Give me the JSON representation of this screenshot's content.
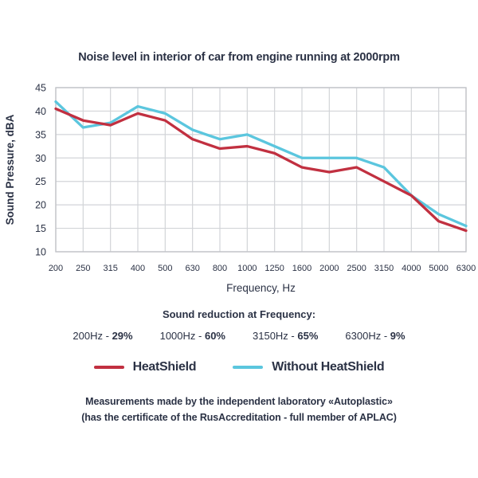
{
  "title": "Noise level in interior of car from engine running at 2000rpm",
  "chart_data": {
    "type": "line",
    "categories": [
      "200",
      "250",
      "315",
      "400",
      "500",
      "630",
      "800",
      "1000",
      "1250",
      "1600",
      "2000",
      "2500",
      "3150",
      "4000",
      "5000",
      "6300"
    ],
    "xlabel": "Frequency, Hz",
    "ylabel": "Sound Pressure, dBA",
    "ylim": [
      10,
      45
    ],
    "ytick_step": 5,
    "grid": true,
    "legend_position": "bottom",
    "series": [
      {
        "name": "HeatShield",
        "color": "#c13040",
        "values": [
          40.5,
          38,
          37,
          39.5,
          38,
          34,
          32,
          32.5,
          31,
          28,
          27,
          28,
          25,
          22,
          16.5,
          14.5
        ]
      },
      {
        "name": "Without HeatShield",
        "color": "#5bc6de",
        "values": [
          42,
          36.5,
          37.5,
          41,
          39.5,
          36,
          34,
          35,
          32.5,
          30,
          30,
          30,
          28,
          22,
          18,
          15.5
        ]
      }
    ]
  },
  "reduction": {
    "heading": "Sound reduction at Frequency:",
    "items": [
      {
        "freq": "200Hz -",
        "value": "29%"
      },
      {
        "freq": "1000Hz -",
        "value": "60%"
      },
      {
        "freq": "3150Hz -",
        "value": "65%"
      },
      {
        "freq": "6300Hz -",
        "value": "9%"
      }
    ]
  },
  "legend": [
    {
      "label": "HeatShield",
      "color": "#c13040"
    },
    {
      "label": "Without HeatShield",
      "color": "#5bc6de"
    }
  ],
  "footer": {
    "line1": "Measurements made by the independent laboratory «Autoplastic»",
    "line2": "(has the certificate of the RusAccreditation - full member of APLAC)"
  },
  "colors": {
    "text": "#2b3245",
    "grid": "#d2d4d8",
    "plot_border": "#c2c4c8",
    "background": "#ffffff"
  }
}
